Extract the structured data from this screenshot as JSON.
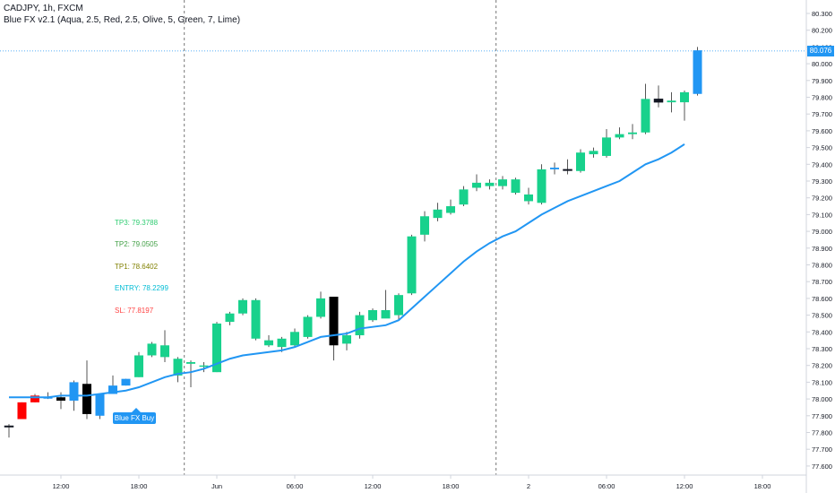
{
  "header": {
    "symbol_title": "CADJPY, 1h, FXCM",
    "indicator_title": "Blue FX v2.1 (Aqua, 2.5, Red, 2.5, Olive, 5, Green, 7, Lime)"
  },
  "signal": {
    "buy_label": "Blue FX Buy"
  },
  "levels": {
    "tp3": "TP3: 79.3788",
    "tp2": "TP2: 79.0505",
    "tp1": "TP1: 78.6402",
    "entry": "ENTRY: 78.2299",
    "sl": "SL: 77.8197"
  },
  "last_price": "80.076",
  "colors": {
    "bull": "#18d18c",
    "bear": "#000000",
    "blue": "#2196f3",
    "red": "#ff0000",
    "tp3": "#2ecc71",
    "tp2": "#43a047",
    "tp1": "#808000",
    "entry": "#00bcd4",
    "sl": "#ff4444",
    "grid": "#e0e3eb",
    "axis_text": "#131722"
  },
  "chart_data": {
    "type": "candlestick",
    "ylim": [
      77.55,
      80.35
    ],
    "y_ticks": [
      "80.300",
      "80.200",
      "80.100",
      "80.000",
      "79.900",
      "79.800",
      "79.700",
      "79.600",
      "79.500",
      "79.400",
      "79.300",
      "79.200",
      "79.100",
      "79.000",
      "78.900",
      "78.800",
      "78.700",
      "78.600",
      "78.500",
      "78.400",
      "78.300",
      "78.200",
      "78.100",
      "78.000",
      "77.900",
      "77.800",
      "77.700",
      "77.600"
    ],
    "x_ticks": [
      {
        "label": "12:00",
        "i": 4
      },
      {
        "label": "18:00",
        "i": 10
      },
      {
        "label": "Jun",
        "i": 16
      },
      {
        "label": "06:00",
        "i": 22
      },
      {
        "label": "12:00",
        "i": 28
      },
      {
        "label": "18:00",
        "i": 34
      },
      {
        "label": "2",
        "i": 40
      },
      {
        "label": "06:00",
        "i": 46
      },
      {
        "label": "12:00",
        "i": 52
      },
      {
        "label": "18:00",
        "i": 58
      }
    ],
    "session_breaks": [
      13.5,
      37.5
    ],
    "candles": [
      {
        "o": 77.84,
        "h": 77.85,
        "l": 77.77,
        "c": 77.84,
        "color": "neutral"
      },
      {
        "o": 77.88,
        "h": 77.98,
        "l": 77.88,
        "c": 77.98,
        "color": "red"
      },
      {
        "o": 77.98,
        "h": 78.03,
        "l": 77.98,
        "c": 78.02,
        "color": "red"
      },
      {
        "o": 78.01,
        "h": 78.04,
        "l": 78.0,
        "c": 78.01,
        "color": "blue"
      },
      {
        "o": 77.99,
        "h": 78.04,
        "l": 77.94,
        "c": 78.01,
        "color": "black"
      },
      {
        "o": 77.99,
        "h": 78.11,
        "l": 77.93,
        "c": 78.1,
        "color": "blue"
      },
      {
        "o": 78.09,
        "h": 78.23,
        "l": 77.88,
        "c": 77.91,
        "color": "black"
      },
      {
        "o": 77.9,
        "h": 78.03,
        "l": 77.88,
        "c": 78.03,
        "color": "blue"
      },
      {
        "o": 78.03,
        "h": 78.14,
        "l": 78.03,
        "c": 78.08,
        "color": "blue"
      },
      {
        "o": 78.08,
        "h": 78.12,
        "l": 78.08,
        "c": 78.12,
        "color": "blue"
      },
      {
        "o": 78.13,
        "h": 78.28,
        "l": 78.13,
        "c": 78.26,
        "color": "bull"
      },
      {
        "o": 78.26,
        "h": 78.34,
        "l": 78.25,
        "c": 78.33,
        "color": "bull"
      },
      {
        "o": 78.32,
        "h": 78.41,
        "l": 78.22,
        "c": 78.25,
        "color": "bull"
      },
      {
        "o": 78.14,
        "h": 78.25,
        "l": 78.1,
        "c": 78.24,
        "color": "bull"
      },
      {
        "o": 78.21,
        "h": 78.23,
        "l": 78.07,
        "c": 78.22,
        "color": "bull"
      },
      {
        "o": 78.2,
        "h": 78.22,
        "l": 78.16,
        "c": 78.2,
        "color": "bull"
      },
      {
        "o": 78.16,
        "h": 78.46,
        "l": 78.16,
        "c": 78.45,
        "color": "bull"
      },
      {
        "o": 78.46,
        "h": 78.52,
        "l": 78.44,
        "c": 78.51,
        "color": "bull"
      },
      {
        "o": 78.51,
        "h": 78.6,
        "l": 78.5,
        "c": 78.59,
        "color": "bull"
      },
      {
        "o": 78.59,
        "h": 78.6,
        "l": 78.35,
        "c": 78.36,
        "color": "bull"
      },
      {
        "o": 78.35,
        "h": 78.38,
        "l": 78.31,
        "c": 78.32,
        "color": "bull"
      },
      {
        "o": 78.31,
        "h": 78.37,
        "l": 78.28,
        "c": 78.36,
        "color": "bull"
      },
      {
        "o": 78.32,
        "h": 78.42,
        "l": 78.31,
        "c": 78.4,
        "color": "bull"
      },
      {
        "o": 78.37,
        "h": 78.5,
        "l": 78.36,
        "c": 78.49,
        "color": "bull"
      },
      {
        "o": 78.49,
        "h": 78.64,
        "l": 78.48,
        "c": 78.6,
        "color": "bull"
      },
      {
        "o": 78.61,
        "h": 78.61,
        "l": 78.23,
        "c": 78.32,
        "color": "black"
      },
      {
        "o": 78.33,
        "h": 78.4,
        "l": 78.29,
        "c": 78.38,
        "color": "bull"
      },
      {
        "o": 78.38,
        "h": 78.52,
        "l": 78.36,
        "c": 78.5,
        "color": "bull"
      },
      {
        "o": 78.47,
        "h": 78.54,
        "l": 78.46,
        "c": 78.53,
        "color": "bull"
      },
      {
        "o": 78.53,
        "h": 78.65,
        "l": 78.49,
        "c": 78.48,
        "color": "bull"
      },
      {
        "o": 78.5,
        "h": 78.63,
        "l": 78.47,
        "c": 78.62,
        "color": "bull"
      },
      {
        "o": 78.63,
        "h": 78.98,
        "l": 78.62,
        "c": 78.97,
        "color": "bull"
      },
      {
        "o": 78.98,
        "h": 79.12,
        "l": 78.94,
        "c": 79.09,
        "color": "bull"
      },
      {
        "o": 79.08,
        "h": 79.17,
        "l": 79.06,
        "c": 79.13,
        "color": "bull"
      },
      {
        "o": 79.11,
        "h": 79.19,
        "l": 79.1,
        "c": 79.15,
        "color": "bull"
      },
      {
        "o": 79.16,
        "h": 79.27,
        "l": 79.15,
        "c": 79.25,
        "color": "bull"
      },
      {
        "o": 79.26,
        "h": 79.34,
        "l": 79.24,
        "c": 79.29,
        "color": "bull"
      },
      {
        "o": 79.27,
        "h": 79.31,
        "l": 79.25,
        "c": 79.29,
        "color": "bull"
      },
      {
        "o": 79.27,
        "h": 79.33,
        "l": 79.25,
        "c": 79.31,
        "color": "bull"
      },
      {
        "o": 79.31,
        "h": 79.32,
        "l": 79.22,
        "c": 79.23,
        "color": "bull"
      },
      {
        "o": 79.22,
        "h": 79.26,
        "l": 79.16,
        "c": 79.18,
        "color": "bull"
      },
      {
        "o": 79.17,
        "h": 79.4,
        "l": 79.16,
        "c": 79.37,
        "color": "bull"
      },
      {
        "o": 79.37,
        "h": 79.41,
        "l": 79.34,
        "c": 79.38,
        "color": "blue"
      },
      {
        "o": 79.37,
        "h": 79.43,
        "l": 79.34,
        "c": 79.37,
        "color": "neutral"
      },
      {
        "o": 79.36,
        "h": 79.49,
        "l": 79.35,
        "c": 79.47,
        "color": "bull"
      },
      {
        "o": 79.46,
        "h": 79.5,
        "l": 79.44,
        "c": 79.48,
        "color": "bull"
      },
      {
        "o": 79.45,
        "h": 79.61,
        "l": 79.44,
        "c": 79.56,
        "color": "bull"
      },
      {
        "o": 79.56,
        "h": 79.62,
        "l": 79.55,
        "c": 79.58,
        "color": "bull"
      },
      {
        "o": 79.58,
        "h": 79.64,
        "l": 79.55,
        "c": 79.59,
        "color": "bull"
      },
      {
        "o": 79.59,
        "h": 79.88,
        "l": 79.58,
        "c": 79.79,
        "color": "bull"
      },
      {
        "o": 79.77,
        "h": 79.87,
        "l": 79.74,
        "c": 79.79,
        "color": "neutral"
      },
      {
        "o": 79.77,
        "h": 79.83,
        "l": 79.71,
        "c": 79.78,
        "color": "bull"
      },
      {
        "o": 79.77,
        "h": 79.84,
        "l": 79.66,
        "c": 79.83,
        "color": "bull"
      },
      {
        "o": 79.82,
        "h": 80.1,
        "l": 79.81,
        "c": 80.08,
        "color": "blue"
      }
    ],
    "ma_line": {
      "color": "#2196f3",
      "values": [
        78.01,
        78.01,
        78.01,
        78.01,
        78.02,
        78.02,
        78.02,
        78.03,
        78.04,
        78.05,
        78.07,
        78.1,
        78.13,
        78.15,
        78.16,
        78.18,
        78.21,
        78.24,
        78.26,
        78.27,
        78.28,
        78.29,
        78.31,
        78.34,
        78.37,
        78.38,
        78.39,
        78.42,
        78.43,
        78.44,
        78.47,
        78.54,
        78.61,
        78.68,
        78.75,
        78.82,
        78.88,
        78.93,
        78.97,
        79.0,
        79.05,
        79.1,
        79.14,
        79.18,
        79.21,
        79.24,
        79.27,
        79.3,
        79.35,
        79.4,
        79.43,
        79.47,
        79.52
      ]
    },
    "last_price_line": 80.076
  }
}
